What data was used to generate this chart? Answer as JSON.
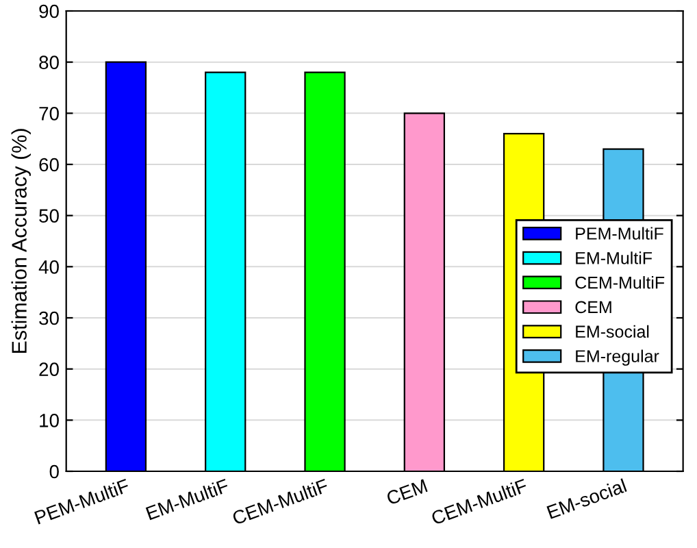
{
  "chart_data": {
    "type": "bar",
    "ylabel": "Estimation Accuracy (%)",
    "categories": [
      "PEM-MultiF",
      "EM-MultiF",
      "CEM-MultiF",
      "CEM",
      "CEM-MultiF",
      "EM-social"
    ],
    "series": [
      {
        "name": "PEM-MultiF",
        "color": "#0000ff",
        "values": [
          80,
          null,
          null,
          null,
          null,
          null
        ]
      },
      {
        "name": "EM-MultiF",
        "color": "#00ffff",
        "values": [
          null,
          78,
          null,
          null,
          null,
          null
        ]
      },
      {
        "name": "CEM-MultiF",
        "color": "#00ff00",
        "values": [
          null,
          null,
          78,
          null,
          null,
          null
        ]
      },
      {
        "name": "CEM",
        "color": "#ff99cc",
        "values": [
          null,
          null,
          null,
          70,
          null,
          null
        ]
      },
      {
        "name": "EM-social",
        "color": "#ffff00",
        "values": [
          null,
          null,
          null,
          null,
          66,
          null
        ]
      },
      {
        "name": "EM-regular",
        "color": "#4dbeee",
        "values": [
          null,
          null,
          null,
          null,
          null,
          63
        ]
      }
    ],
    "ylim": [
      0,
      90
    ],
    "yticks": [
      0,
      10,
      20,
      30,
      40,
      50,
      60,
      70,
      80,
      90
    ],
    "grid": "y",
    "legend": "right"
  }
}
